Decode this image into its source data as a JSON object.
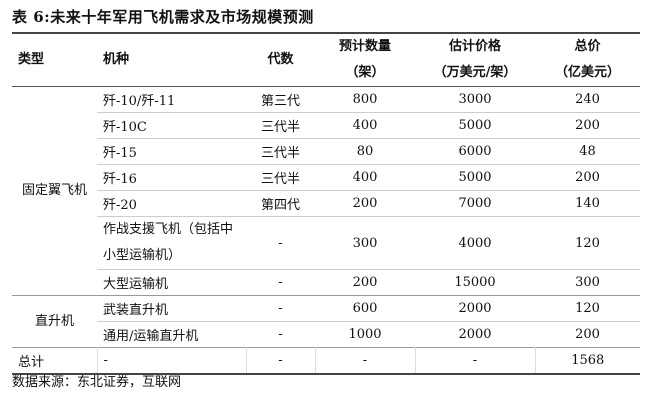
{
  "title": "表  6:未来十年军用飞机需求及市场规模预测",
  "headers": [
    {
      "line1": "类型",
      "line2": ""
    },
    {
      "line1": "机种",
      "line2": ""
    },
    {
      "line1": "代数",
      "line2": ""
    },
    {
      "line1": "预计数量",
      "line2": "（架）"
    },
    {
      "line1": "估计价格",
      "line2": "（万美元/架）"
    },
    {
      "line1": "总价",
      "line2": "（亿美元）"
    }
  ],
  "groups": [
    {
      "type": "固定翼飞机",
      "rows": [
        {
          "model": "歼-10/歼-11",
          "gen": "第三代",
          "qty": "800",
          "price": "3000",
          "total": "240"
        },
        {
          "model": "歼-10C",
          "gen": "三代半",
          "qty": "400",
          "price": "5000",
          "total": "200"
        },
        {
          "model": "歼-15",
          "gen": "三代半",
          "qty": "80",
          "price": "6000",
          "total": "48"
        },
        {
          "model": "歼-16",
          "gen": "三代半",
          "qty": "400",
          "price": "5000",
          "total": "200"
        },
        {
          "model": "歼-20",
          "gen": "第四代",
          "qty": "200",
          "price": "7000",
          "total": "140"
        },
        {
          "model": "作战支援飞机（包括中小型运输机）",
          "gen": "-",
          "qty": "300",
          "price": "4000",
          "total": "120"
        },
        {
          "model": "大型运输机",
          "gen": "-",
          "qty": "200",
          "price": "15000",
          "total": "300"
        }
      ]
    },
    {
      "type": "直升机",
      "rows": [
        {
          "model": "武装直升机",
          "gen": "-",
          "qty": "600",
          "price": "2000",
          "total": "120"
        },
        {
          "model": "通用/运输直升机",
          "gen": "-",
          "qty": "1000",
          "price": "2000",
          "total": "200"
        }
      ]
    }
  ],
  "total_row": {
    "type": "总计",
    "model": "-",
    "gen": "-",
    "qty": "-",
    "price": "-",
    "total": "1568"
  },
  "source": "数据来源：东北证券，互联网"
}
